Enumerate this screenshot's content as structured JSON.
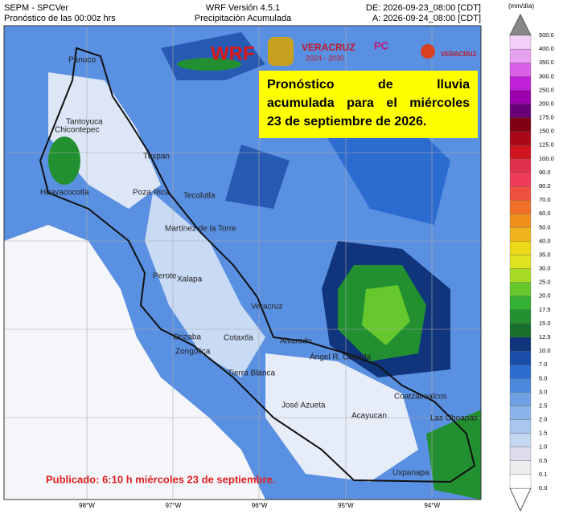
{
  "header": {
    "left": [
      "SEPM - SPCVer",
      "Pronóstico de las 00:00z hrs"
    ],
    "center": [
      "WRF Versión 4.5.1",
      "Precipitación Acumulada"
    ],
    "right": [
      "DE: 2026-09-23_08:00 [CDT]",
      "A: 2026-09-24_08:00 [CDT]"
    ]
  },
  "logos": [
    "WRF",
    "VERACRUZ",
    "2024 - 2030",
    "PC",
    "VERACRUZ"
  ],
  "notice": [
    "Pronóstico de lluvia",
    "acumulada para el miércoles",
    "23 de septiembre de 2026."
  ],
  "published": "Publicado: 6:10 h miércoles 23 de septiembre.",
  "longitudes": [
    "98°W",
    "97°W",
    "96°W",
    "95°W",
    "94°W"
  ],
  "cities": [
    "Pánuco",
    "Tantoyuca",
    "Chicontepec",
    "Tuxpan",
    "Huayacocotla",
    "Poza Rica",
    "Tecolutla",
    "Martínez de la Torre",
    "Perote",
    "Xalapa",
    "Veracruz",
    "Alvarado",
    "Orizaba",
    "Zongolica",
    "Cotaxtla",
    "Tierra Blanca",
    "Ángel R. Cabada",
    "José Azueta",
    "Acayucan",
    "Coatzacoalcos",
    "Las Choapas",
    "Uxpanapa"
  ],
  "legend": {
    "unit": "(mm/día)",
    "labels": [
      "0.0",
      "0.1",
      "0.5",
      "1.0",
      "1.5",
      "2.0",
      "2.5",
      "3.0",
      "5.0",
      "7.0",
      "10.0",
      "12.5",
      "15.0",
      "17.5",
      "20.0",
      "25.0",
      "30.0",
      "35.0",
      "40.0",
      "50.0",
      "60.0",
      "70.0",
      "80.0",
      "90.0",
      "100.0",
      "125.0",
      "150.0",
      "175.0",
      "200.0",
      "250.0",
      "300.0",
      "350.0",
      "400.0",
      "500.0"
    ],
    "colors": [
      "#ffffff",
      "#ececec",
      "#dcdcec",
      "#c4d8f0",
      "#a8c6ee",
      "#8cb4ea",
      "#70a0e4",
      "#4c88dc",
      "#2c6cd0",
      "#1a4ea8",
      "#10357c",
      "#18702c",
      "#229030",
      "#34b034",
      "#66c82c",
      "#a8dc24",
      "#e0e420",
      "#ecd818",
      "#f0b41c",
      "#f0901c",
      "#f07028",
      "#f05040",
      "#f03c5c",
      "#e0304c",
      "#d01420",
      "#a80818",
      "#800014",
      "#6a0078",
      "#9c00b0",
      "#c020d8",
      "#d860e8",
      "#e8a0f0",
      "#f4d0f8"
    ]
  }
}
